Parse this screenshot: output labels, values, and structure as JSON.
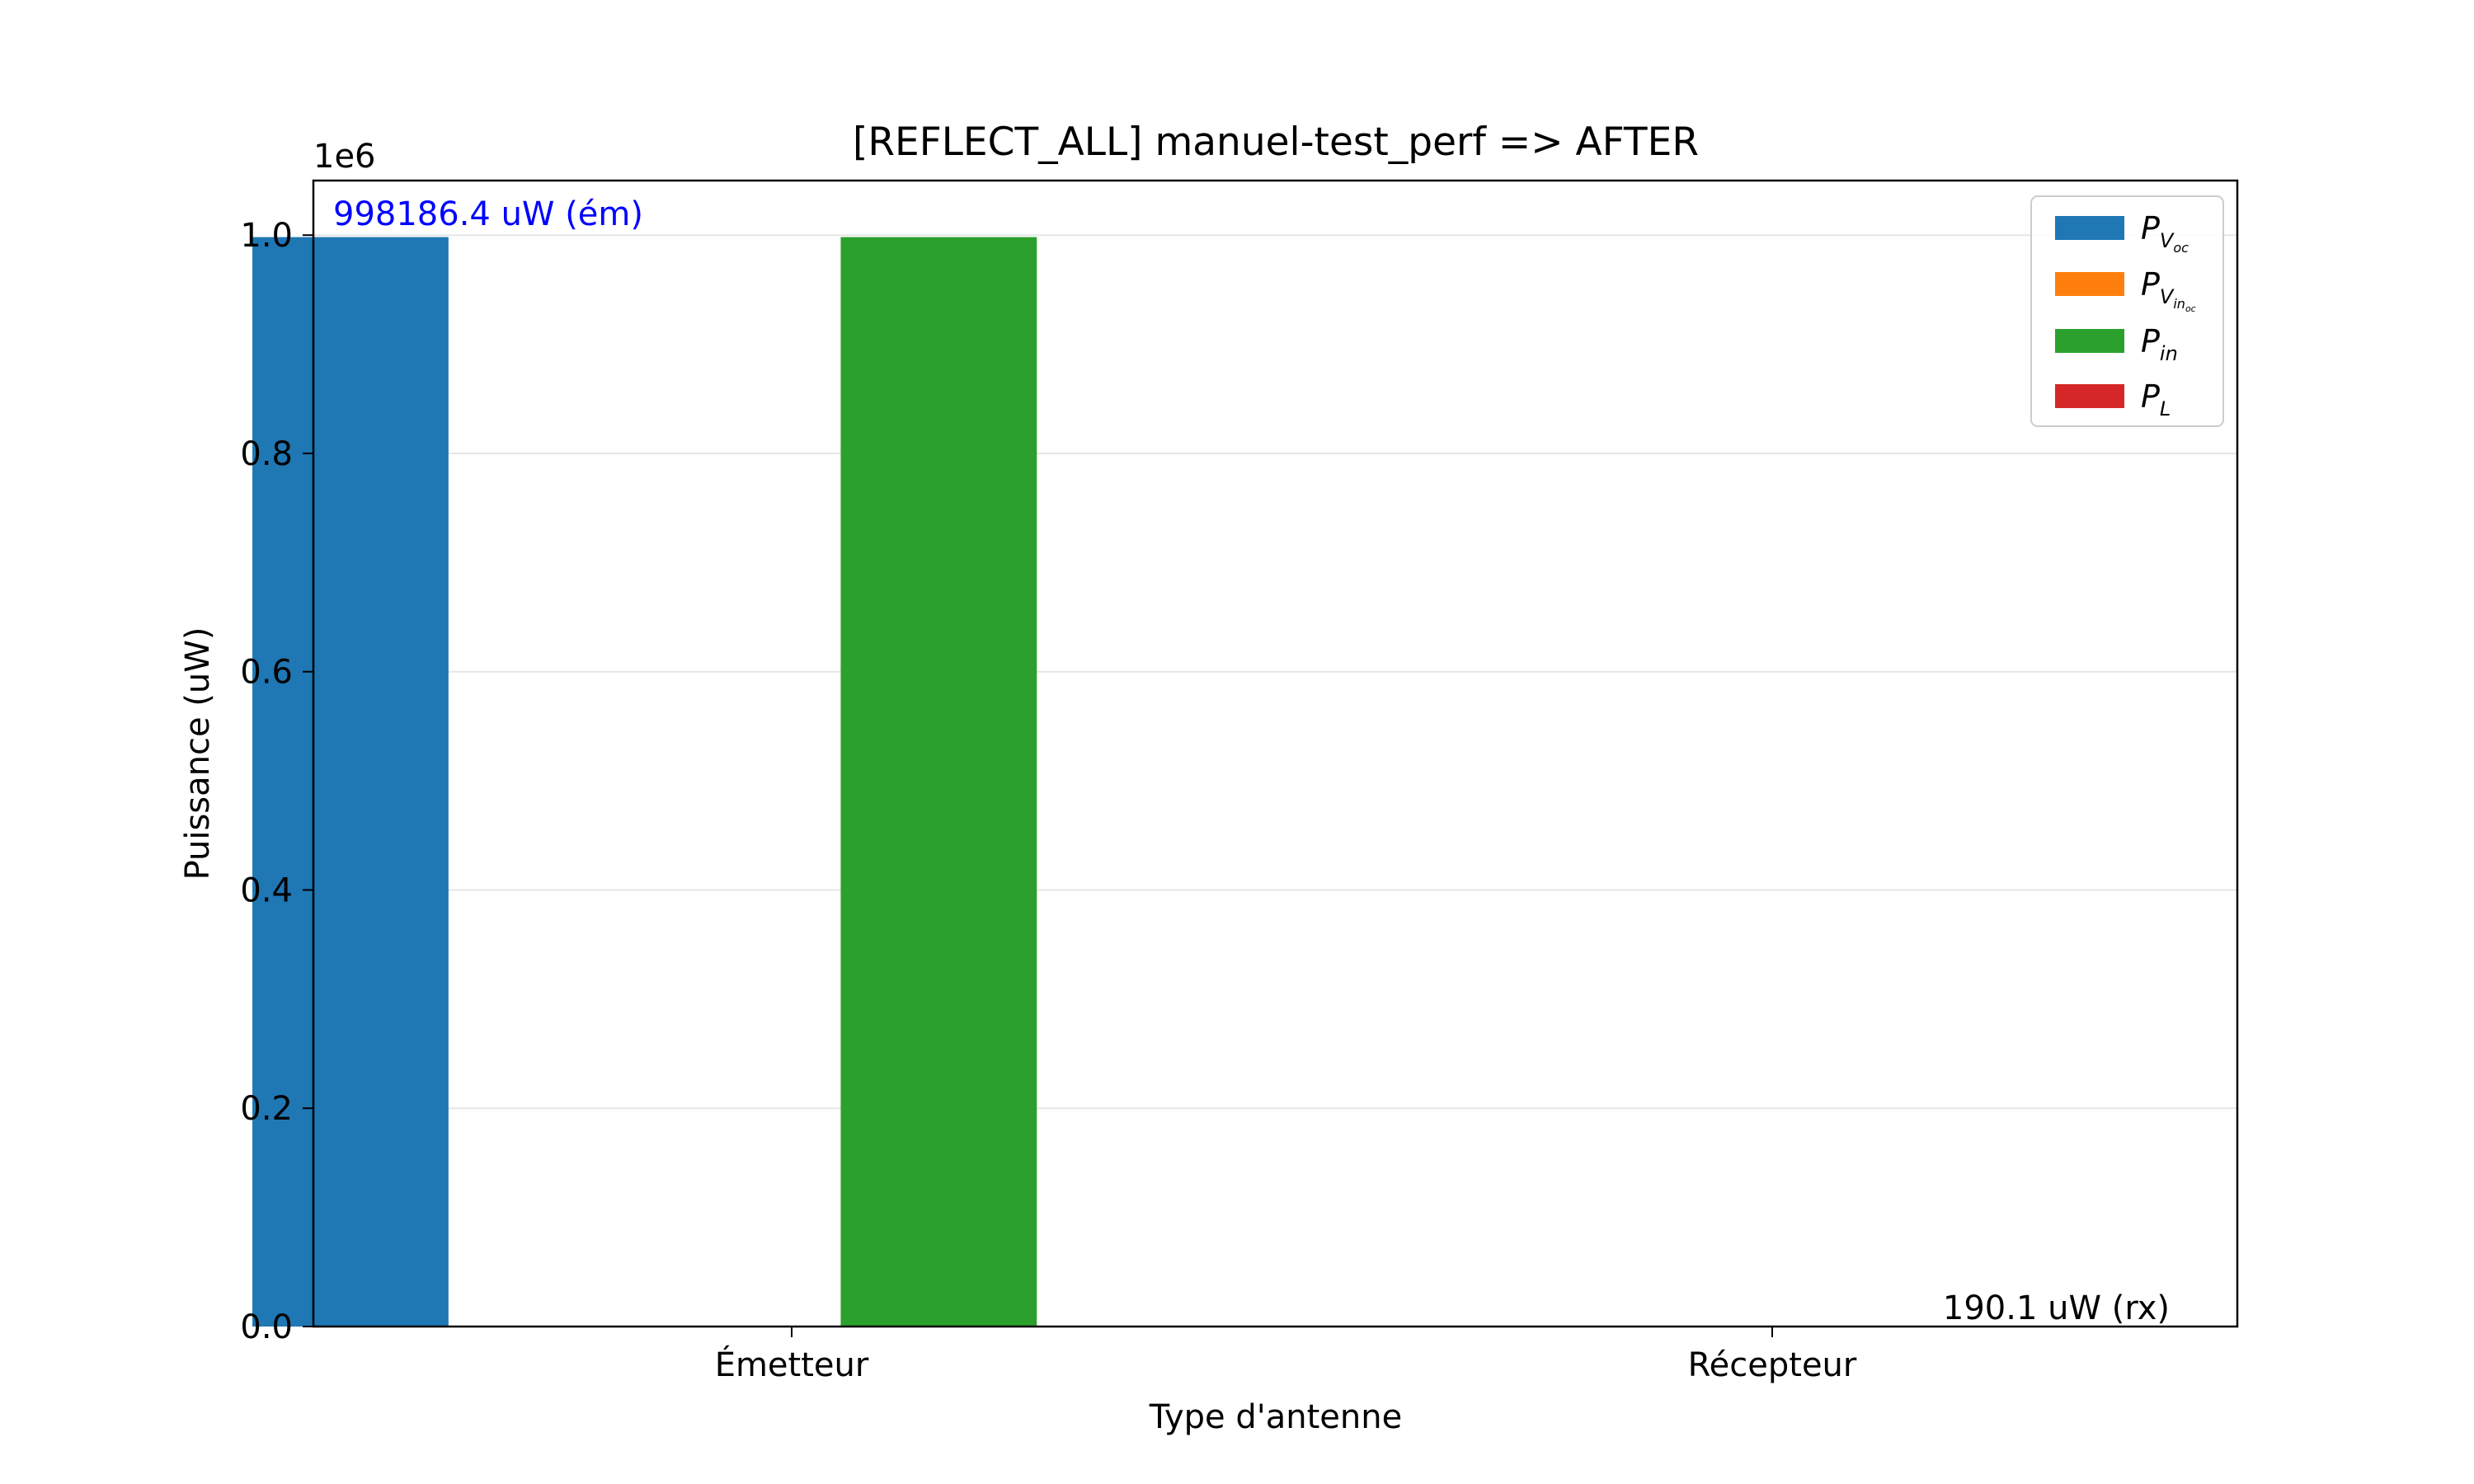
{
  "chart_data": {
    "type": "bar",
    "title": "[REFLECT_ALL] manuel-test_perf => AFTER",
    "xlabel": "Type d'antenne",
    "ylabel": "Puissance (uW)",
    "y_scale_label": "1e6",
    "categories": [
      "Émetteur",
      "Récepteur"
    ],
    "ylim": [
      0,
      1.05
    ],
    "yticks": [
      "0.0",
      "0.2",
      "0.4",
      "0.6",
      "0.8",
      "1.0"
    ],
    "grid": "horizontal",
    "legend_position": "upper right",
    "series": [
      {
        "name": "P_V_oc",
        "color": "#1f77b4",
        "values": [
          0.9981864,
          0.0001901
        ]
      },
      {
        "name": "P_V_in_oc",
        "color": "#ff7f0e",
        "values": [
          0,
          0
        ]
      },
      {
        "name": "P_in",
        "color": "#2ca02c",
        "values": [
          0.9981864,
          0.0001901
        ]
      },
      {
        "name": "P_L",
        "color": "#d62728",
        "values": [
          0,
          0
        ]
      }
    ],
    "legend": [
      {
        "base": "P",
        "sub": "V",
        "subsub": "oc"
      },
      {
        "base": "P",
        "sub": "V",
        "subsub": "in",
        "subsubsub": "oc"
      },
      {
        "base": "P",
        "sub": "in"
      },
      {
        "base": "P",
        "sub": "L"
      }
    ],
    "annotations": [
      {
        "text": "998186.4 uW (ém)",
        "color": "#0000ff"
      },
      {
        "text": "190.1 uW (rx)",
        "color": "#000000"
      }
    ]
  }
}
